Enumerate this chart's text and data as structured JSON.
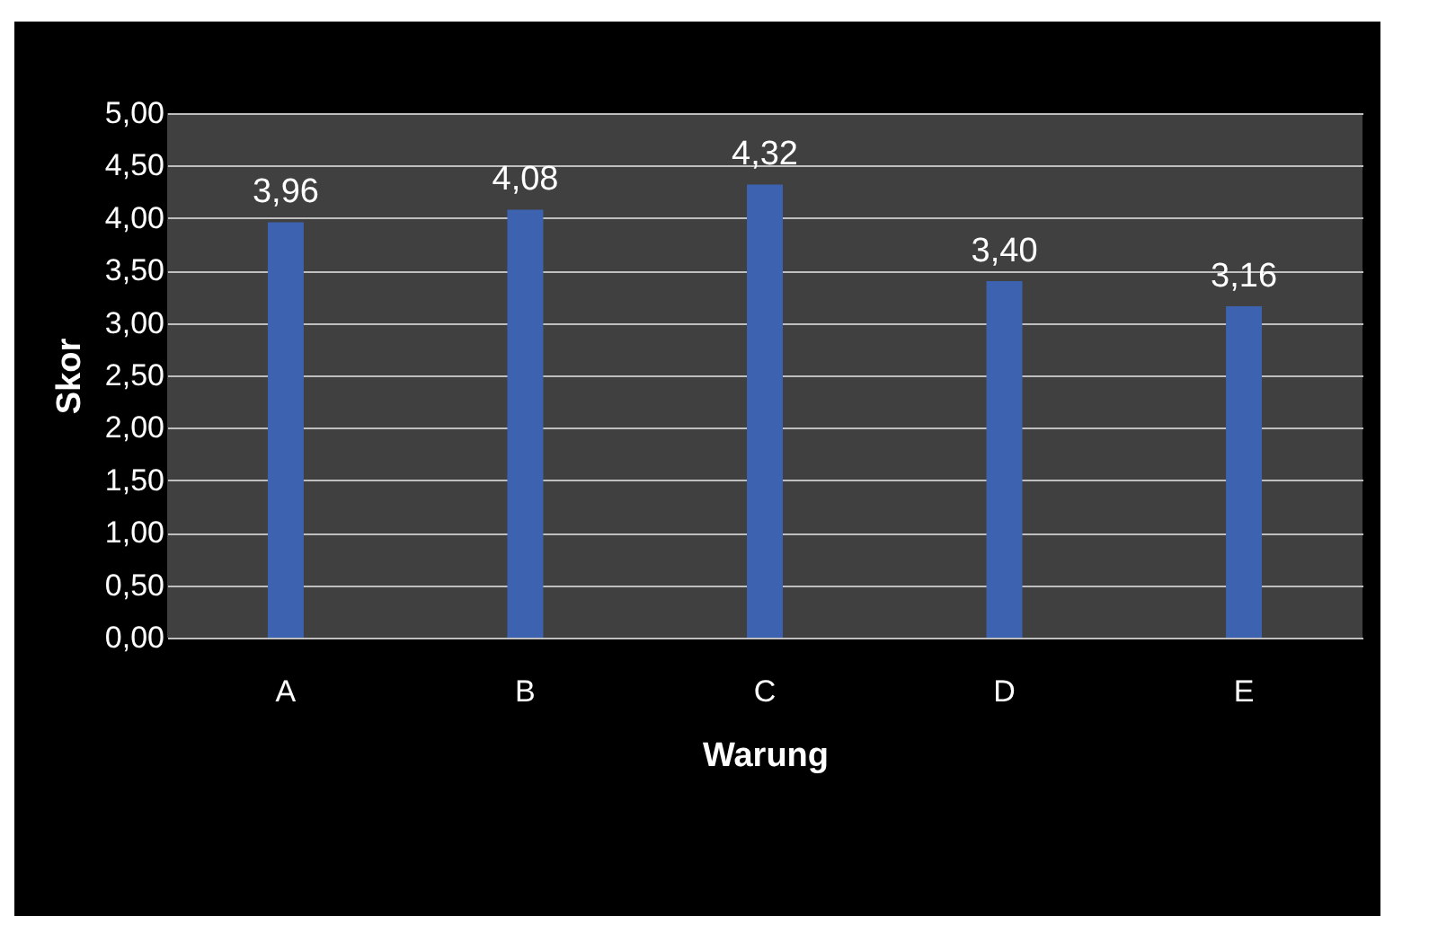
{
  "chart_data": {
    "type": "bar",
    "xlabel": "Warung",
    "ylabel": "Skor",
    "categories": [
      "A",
      "B",
      "C",
      "D",
      "E"
    ],
    "values": [
      3.96,
      4.08,
      4.32,
      3.4,
      3.16
    ],
    "value_labels": [
      "3,96",
      "4,08",
      "4,32",
      "3,40",
      "3,16"
    ],
    "color": "#3c62b0",
    "ylim": [
      0,
      5
    ],
    "yticks": [
      {
        "value": 0,
        "label": "0,00"
      },
      {
        "value": 0.5,
        "label": "0,50"
      },
      {
        "value": 1,
        "label": "1,00"
      },
      {
        "value": 1.5,
        "label": "1,50"
      },
      {
        "value": 2,
        "label": "2,00"
      },
      {
        "value": 2.5,
        "label": "2,50"
      },
      {
        "value": 3,
        "label": "3,00"
      },
      {
        "value": 3.5,
        "label": "3,50"
      },
      {
        "value": 4,
        "label": "4,00"
      },
      {
        "value": 4.5,
        "label": "4,50"
      },
      {
        "value": 5,
        "label": "5,00"
      }
    ],
    "grid": "y"
  }
}
